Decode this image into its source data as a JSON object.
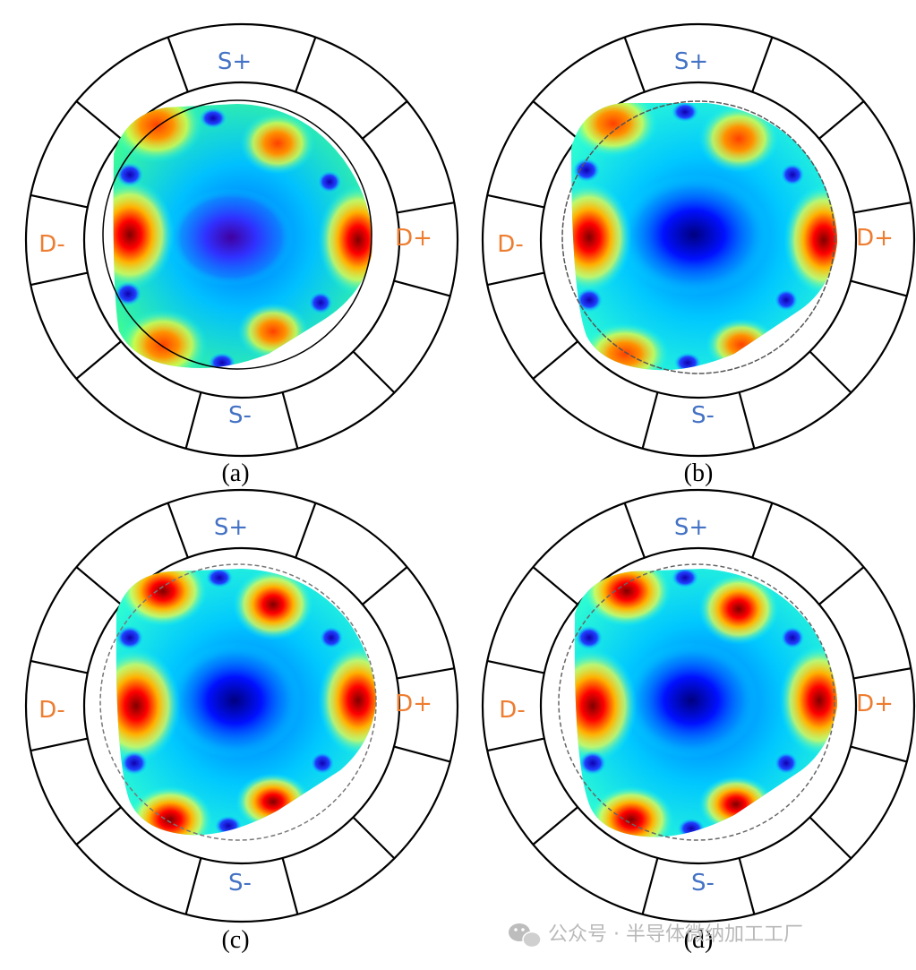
{
  "panels": [
    {
      "id": "a",
      "caption": "(a)",
      "labels": {
        "top": "S+",
        "bottom": "S-",
        "left": "D-",
        "right": "D+"
      }
    },
    {
      "id": "b",
      "caption": "(b)",
      "labels": {
        "top": "S+",
        "bottom": "S-",
        "left": "D-",
        "right": "D+"
      }
    },
    {
      "id": "c",
      "caption": "(c)",
      "labels": {
        "top": "S+",
        "bottom": "S-",
        "left": "D-",
        "right": "D+"
      }
    },
    {
      "id": "d",
      "caption": "(d)",
      "labels": {
        "top": "S+",
        "bottom": "S-",
        "left": "D-",
        "right": "D+"
      }
    }
  ],
  "colors": {
    "electrode_label_s": "#4472c4",
    "electrode_label_d": "#ed7d31",
    "outline": "#000000",
    "colormap": [
      "#00007f",
      "#0000ff",
      "#00ffff",
      "#ffff00",
      "#ff0000",
      "#7f0000"
    ]
  },
  "watermark": {
    "icon": "wechat-icon",
    "text": "公众号 · 半导体微纳加工工厂"
  }
}
